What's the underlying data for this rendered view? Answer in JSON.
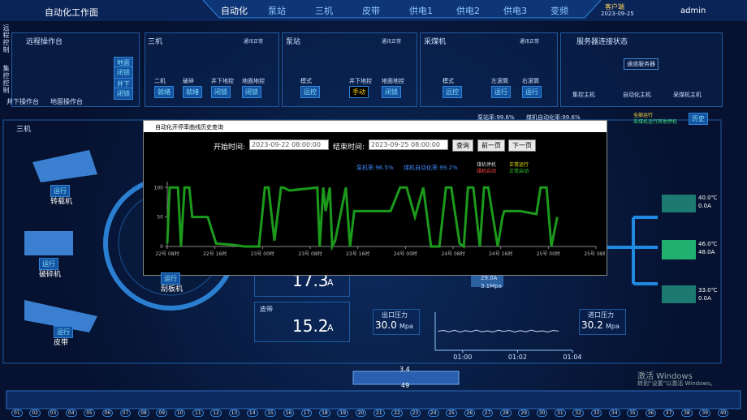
{
  "header": {
    "title": "自动化工作面",
    "nav": [
      "自动化",
      "泵站",
      "三机",
      "皮带",
      "供电1",
      "供电2",
      "供电3",
      "变频"
    ],
    "client": "客户端",
    "datetime": "2023-09-25",
    "user": "admin"
  },
  "side_tabs": [
    "远程控制",
    "集控控制"
  ],
  "panels": {
    "remote": {
      "title": "远程操作台",
      "left": "井下操作台",
      "right": "地面操作台",
      "tags": [
        "地面",
        "闭锁",
        "井下",
        "闭锁"
      ]
    },
    "sanji": {
      "title": "三机",
      "status": "通讯正常",
      "items": [
        [
          "二机",
          "就绪"
        ],
        [
          "破碎",
          "就绪"
        ],
        [
          "井下地控",
          "闭锁"
        ],
        [
          "地面地控",
          "闭锁"
        ]
      ]
    },
    "pump": {
      "title": "泵站",
      "status": "通讯正常",
      "items": [
        [
          "模式",
          "远控"
        ],
        [
          "井下地控",
          "手动"
        ],
        [
          "地面地控",
          "闭锁"
        ]
      ]
    },
    "shearer": {
      "title": "采煤机",
      "status": "通讯正常",
      "items": [
        [
          "模式",
          "远控"
        ],
        [
          "左滚筒",
          "运行"
        ],
        [
          "右滚筒",
          "运行"
        ]
      ]
    },
    "servers": {
      "title": "服务器连接状态",
      "top": "通道服务器",
      "nodes": [
        "集控主机",
        "自动化主机",
        "采煤机主机"
      ]
    }
  },
  "rates": {
    "pump": "泵站率:99.6%",
    "shearer": "煤机自动化率:99.6%",
    "history": "历史"
  },
  "legend": [
    "全部运行",
    "采煤机运行其他停机"
  ],
  "machines": {
    "title": "三机",
    "items": [
      [
        "运行",
        "转载机"
      ],
      [
        "运行",
        "破碎机"
      ],
      [
        "运行",
        "皮带"
      ],
      [
        "运行",
        "刮板机"
      ]
    ]
  },
  "currents": [
    {
      "value": "17.3",
      "unit": "A"
    },
    {
      "label": "皮带",
      "value": "15.2",
      "unit": "A"
    }
  ],
  "pumps": [
    [
      "40.0℃",
      "0.0A"
    ],
    [
      "46.0℃",
      "48.0A"
    ],
    [
      "33.0℃",
      "0.0A"
    ]
  ],
  "pressure": {
    "out_label": "出口压力",
    "out_value": "30.0",
    "in_label": "进口压力",
    "in_value": "30.2",
    "unit": "Mpa",
    "motor": [
      "29.0A",
      "3.1Mpa"
    ]
  },
  "shearer_pos": [
    "3.4",
    "49"
  ],
  "dialog": {
    "title": "自动化开停率曲线历史查询",
    "start_label": "开始时间:",
    "start": "2023-09-22 08:00:00",
    "end_label": "结束时间:",
    "end": "2023-09-25 08:00:00",
    "buttons": [
      "查询",
      "前一页",
      "下一页"
    ],
    "rates": [
      "泵机率:96.5%",
      "煤机自动化率:99.2%"
    ],
    "legend": [
      "煤机停机",
      "煤机启动",
      "正常运行",
      "正常启动"
    ]
  },
  "supports": [
    "01",
    "02",
    "03",
    "04",
    "05",
    "06",
    "07",
    "08",
    "09",
    "10",
    "11",
    "12",
    "13",
    "14",
    "15",
    "16",
    "17",
    "18",
    "19",
    "20",
    "21",
    "22",
    "23",
    "24",
    "25",
    "26",
    "27",
    "28",
    "29",
    "30",
    "31",
    "32",
    "33",
    "34",
    "35",
    "36",
    "37",
    "38",
    "39",
    "40"
  ],
  "watermark": [
    "激活 Windows",
    "转到“设置”以激活 Windows。"
  ],
  "chart_data": [
    {
      "type": "line",
      "color": "#1c9a1c",
      "x": [
        0,
        0.4,
        1.8,
        2.3,
        2.9,
        3.7,
        4.2,
        6.8,
        8.2,
        10.9,
        13,
        15.4,
        16.4,
        17,
        18,
        19.1,
        19.5,
        20.5,
        25.2,
        25.6,
        26.2,
        26.6,
        27.3,
        27.7,
        28.2,
        30,
        30.7,
        31.4,
        33.4,
        36.1,
        37.5,
        39.1,
        40.2,
        41.6,
        43,
        44.3,
        45.7,
        46.8,
        47.7,
        49.1,
        49.8,
        50.5,
        51.4,
        52.5,
        53.2,
        53.9,
        55.5,
        56.3,
        56.6,
        59.3,
        62,
        62.7,
        63.7,
        64.5,
        65.5
      ],
      "values": [
        5,
        100,
        100,
        0,
        100,
        100,
        50,
        50,
        5,
        3,
        0,
        0,
        100,
        100,
        10,
        100,
        100,
        95,
        100,
        0,
        100,
        60,
        100,
        0,
        10,
        100,
        0,
        60,
        60,
        60,
        60,
        100,
        100,
        50,
        100,
        0,
        0,
        100,
        100,
        5,
        0,
        100,
        100,
        0,
        100,
        100,
        0,
        50,
        60,
        60,
        55,
        100,
        100,
        0,
        50
      ],
      "xlim": [
        0,
        72
      ],
      "ylim": [
        0,
        110
      ],
      "yticks": [
        0,
        50,
        100
      ],
      "xticks": [
        {
          "value": 0,
          "label": "22号 08时"
        },
        {
          "value": 8,
          "label": "22号 16时"
        },
        {
          "value": 16,
          "label": "23号 00时"
        },
        {
          "value": 24,
          "label": "23号 08时"
        },
        {
          "value": 32,
          "label": "23号 16时"
        },
        {
          "value": 40,
          "label": "24号 00时"
        },
        {
          "value": 48,
          "label": "24号 08时"
        },
        {
          "value": 56,
          "label": "24号 16时"
        },
        {
          "value": 64,
          "label": "25号 00时"
        },
        {
          "value": 72,
          "label": "25号 08时"
        }
      ]
    },
    {
      "type": "line",
      "color": "#c8d8f0",
      "x": [
        -0.9,
        -0.7,
        -0.5,
        -0.3,
        -0.1,
        0.1,
        0.3,
        0.5,
        0.7,
        0.9,
        1.1,
        1.3,
        1.5,
        1.7,
        1.9,
        2.1,
        2.3,
        2.5,
        2.7,
        2.9,
        3.1,
        3.3,
        3.5
      ],
      "values": [
        30.0,
        30.4,
        29.7,
        30.5,
        29.6,
        30.3,
        29.8,
        30.6,
        29.7,
        30.2,
        29.6,
        30.5,
        29.9,
        30.4,
        29.6,
        30.3,
        29.7,
        30.6,
        29.8,
        30.2,
        29.6,
        30.4,
        30.0
      ],
      "xlim": [
        -1,
        4
      ],
      "ylim": [
        20,
        40
      ],
      "xticks": [
        {
          "value": 0,
          "label": "01:00"
        },
        {
          "value": 2,
          "label": "01:02"
        },
        {
          "value": 4,
          "label": "01:04"
        }
      ]
    }
  ]
}
